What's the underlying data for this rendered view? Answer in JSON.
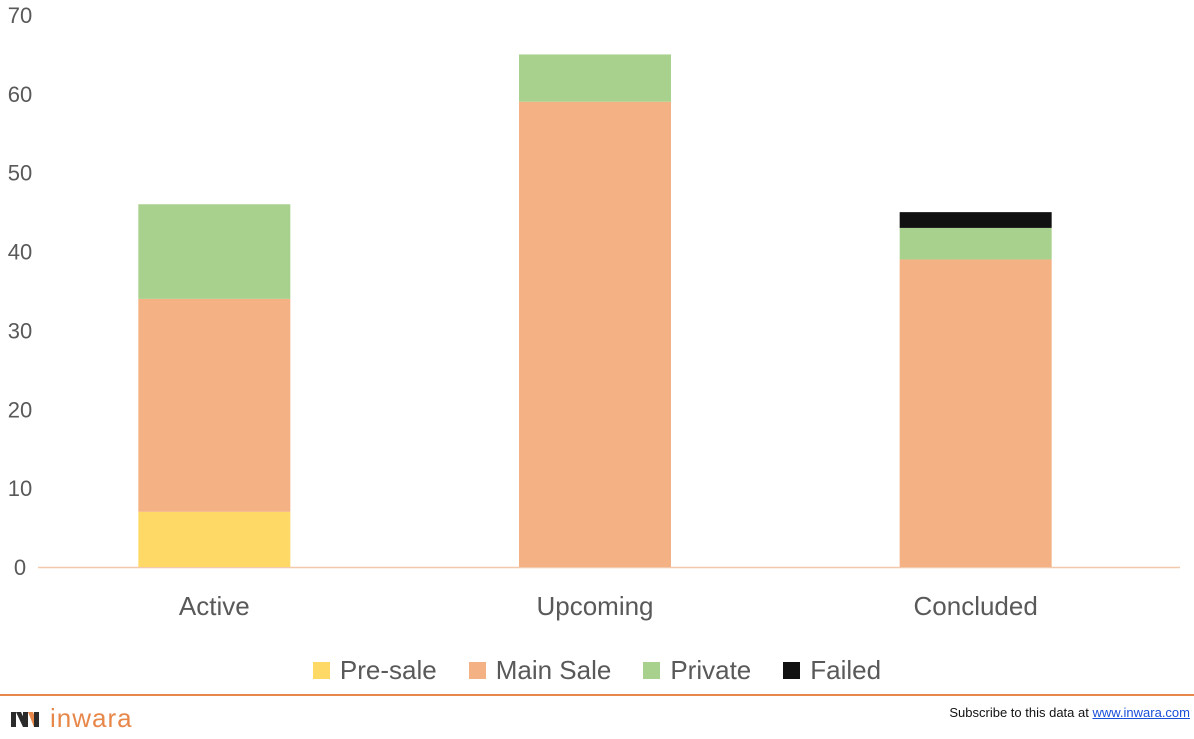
{
  "chart_data": {
    "type": "bar",
    "stacked": true,
    "categories": [
      "Active",
      "Upcoming",
      "Concluded"
    ],
    "series": [
      {
        "name": "Pre-sale",
        "color": "#ffd966",
        "values": [
          7,
          0,
          0
        ]
      },
      {
        "name": "Main Sale",
        "color": "#f4b183",
        "values": [
          27,
          59,
          39
        ]
      },
      {
        "name": "Private",
        "color": "#a9d18e",
        "values": [
          12,
          6,
          4
        ]
      },
      {
        "name": "Failed",
        "color": "#111111",
        "values": [
          0,
          0,
          2
        ]
      }
    ],
    "ylim": [
      0,
      70
    ],
    "yticks": [
      "0",
      "10",
      "20",
      "30",
      "40",
      "50",
      "60",
      "70"
    ],
    "grid": false,
    "legend_position": "bottom"
  },
  "footer": {
    "brand": "inwara",
    "subscribe_text": "Subscribe to this data at ",
    "subscribe_link": "www.inwara.com",
    "accent_color": "#e8874a"
  }
}
